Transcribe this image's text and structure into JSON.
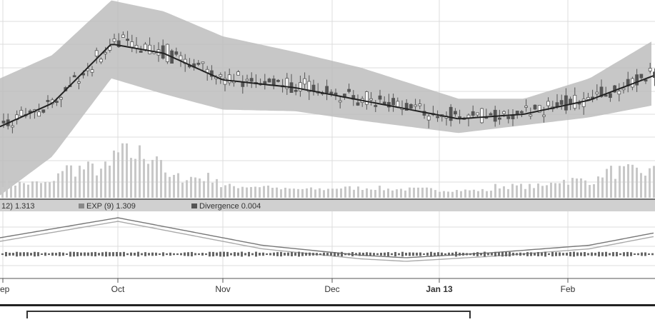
{
  "chart_data": [
    {
      "type": "candlestick",
      "panel": "price",
      "overlays": [
        "moving-average",
        "envelope-band"
      ],
      "x_ticks": [
        "ep",
        "Oct",
        "Nov",
        "Dec",
        "Jan 13",
        "Feb"
      ],
      "grid": true,
      "colors": {
        "band": "#bdbdbd",
        "candle": "#555555",
        "ma": "#222222",
        "grid": "#dcdcdc"
      },
      "price_trend": [
        {
          "x": 0,
          "mid": 0.25,
          "band_top": 0.55,
          "band_bottom": -0.2
        },
        {
          "x": 0.08,
          "mid": 0.4,
          "band_top": 0.7,
          "band_bottom": 0.05
        },
        {
          "x": 0.17,
          "mid": 0.78,
          "band_top": 1.05,
          "band_bottom": 0.55
        },
        {
          "x": 0.25,
          "mid": 0.72,
          "band_top": 0.98,
          "band_bottom": 0.45
        },
        {
          "x": 0.34,
          "mid": 0.55,
          "band_top": 0.82,
          "band_bottom": 0.35
        },
        {
          "x": 0.45,
          "mid": 0.5,
          "band_top": 0.72,
          "band_bottom": 0.34
        },
        {
          "x": 0.55,
          "mid": 0.42,
          "band_top": 0.62,
          "band_bottom": 0.28
        },
        {
          "x": 0.7,
          "mid": 0.3,
          "band_top": 0.42,
          "band_bottom": 0.2
        },
        {
          "x": 0.8,
          "mid": 0.33,
          "band_top": 0.42,
          "band_bottom": 0.25
        },
        {
          "x": 0.9,
          "mid": 0.42,
          "band_top": 0.55,
          "band_bottom": 0.3
        },
        {
          "x": 1,
          "mid": 0.58,
          "band_top": 0.8,
          "band_bottom": 0.38
        }
      ]
    },
    {
      "type": "bar",
      "panel": "volume",
      "description_levels": [
        0.2,
        0.45,
        0.7,
        0.3,
        0.15,
        0.1,
        0.12,
        0.1,
        0.08,
        0.15,
        0.25,
        0.4
      ],
      "colors": {
        "bar": "#c8c8c8"
      }
    },
    {
      "type": "line",
      "panel": "macd",
      "legend": [
        {
          "label": "12) 1.313"
        },
        {
          "label": "EXP (9) 1.309"
        },
        {
          "label": "Divergence 0.004"
        }
      ],
      "series_shape": [
        {
          "x": 0,
          "y": 0.6
        },
        {
          "x": 0.18,
          "y": 1.0
        },
        {
          "x": 0.3,
          "y": 0.7
        },
        {
          "x": 0.4,
          "y": 0.45
        },
        {
          "x": 0.55,
          "y": 0.25
        },
        {
          "x": 0.62,
          "y": 0.2
        },
        {
          "x": 0.75,
          "y": 0.3
        },
        {
          "x": 0.9,
          "y": 0.45
        },
        {
          "x": 1,
          "y": 0.7
        }
      ],
      "colors": {
        "macd": "#777777",
        "signal": "#aaaaaa",
        "divergence": "#666666"
      }
    }
  ],
  "footer": {
    "box": ""
  }
}
